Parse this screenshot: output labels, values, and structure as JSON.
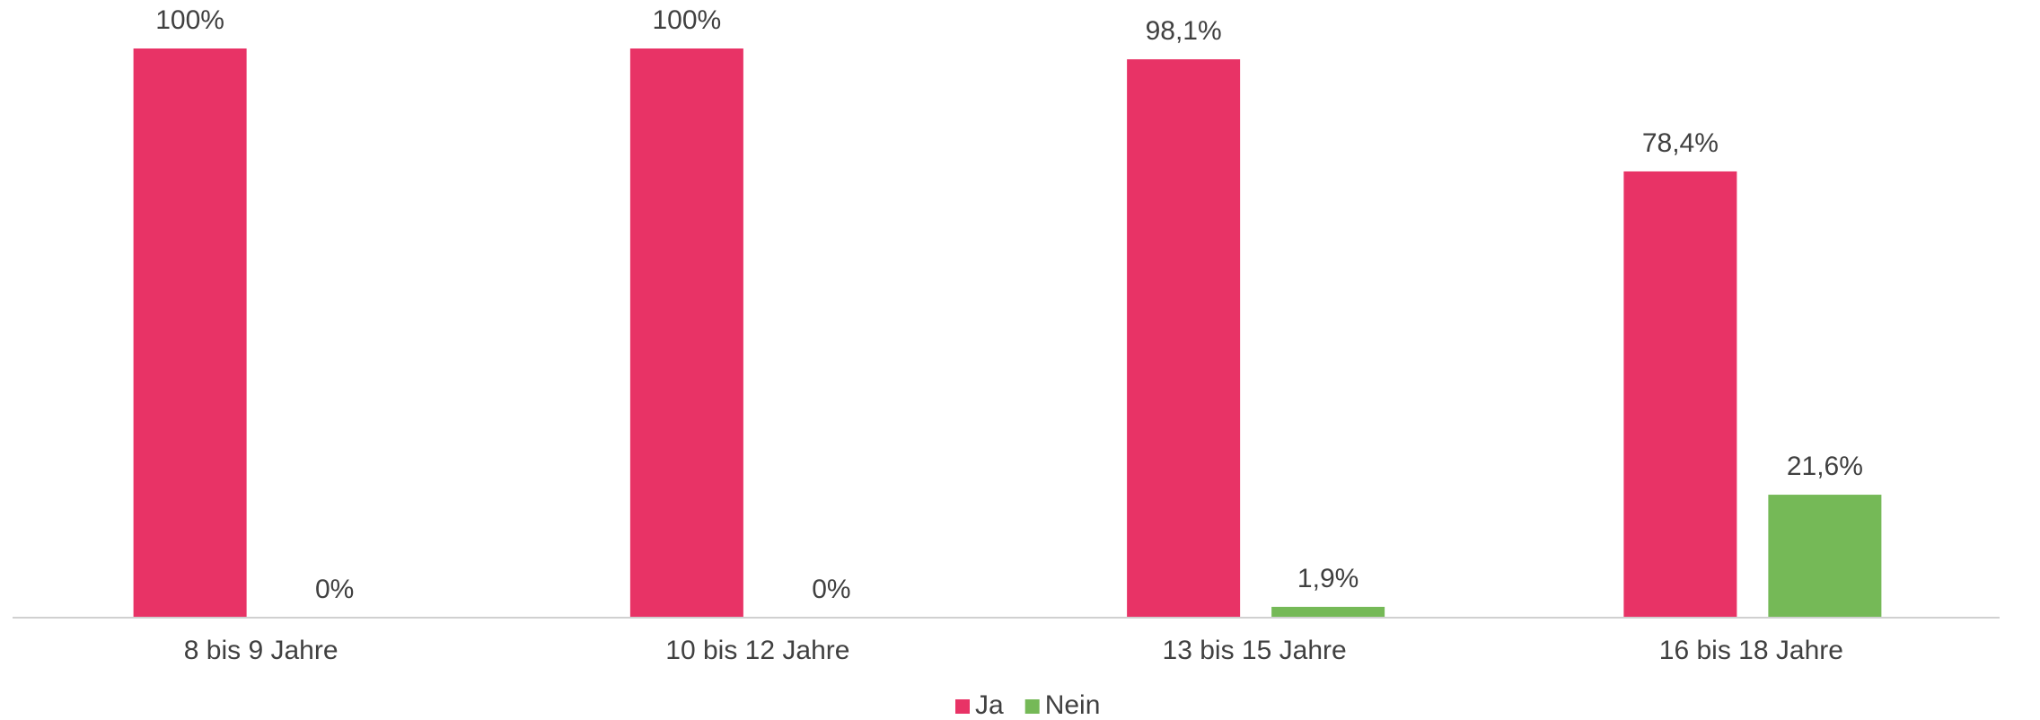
{
  "chart_data": {
    "type": "bar",
    "categories": [
      "8 bis 9 Jahre",
      "10 bis 12 Jahre",
      "13 bis 15 Jahre",
      "16 bis 18 Jahre"
    ],
    "series": [
      {
        "name": "Ja",
        "color": "#e83366",
        "values": [
          100,
          100,
          98.1,
          78.4
        ],
        "value_labels": [
          "100%",
          "100%",
          "98,1%",
          "78,4%"
        ]
      },
      {
        "name": "Nein",
        "color": "#75b957",
        "values": [
          0,
          0,
          1.9,
          21.6
        ],
        "value_labels": [
          "0%",
          "0%",
          "1,9%",
          "21,6%"
        ]
      }
    ],
    "ylim": [
      0,
      100
    ],
    "legend": "bottom"
  }
}
